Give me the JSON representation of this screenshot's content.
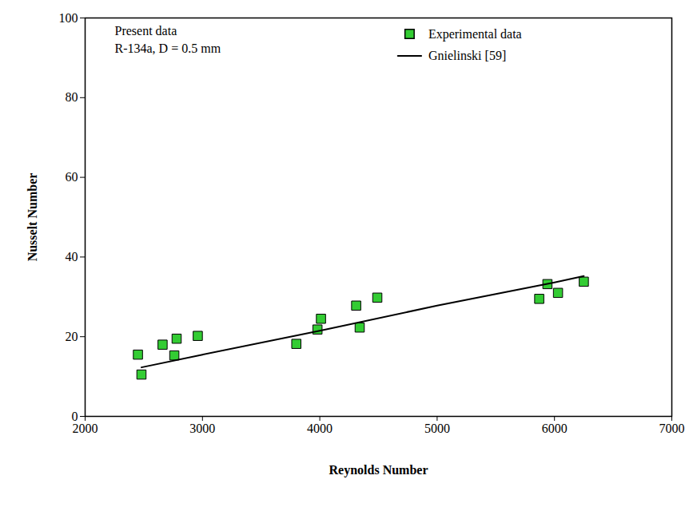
{
  "chart_data": {
    "type": "scatter",
    "x_label": "Reynolds Number",
    "y_label": "Nusselt Number",
    "annotations": [
      "Present data",
      "R-134a, D = 0.5 mm"
    ],
    "xlim": [
      2000,
      7000
    ],
    "xticks": [
      2000,
      3000,
      4000,
      5000,
      6000,
      7000
    ],
    "ylim": [
      0,
      100
    ],
    "yticks": [
      0,
      20,
      40,
      60,
      80,
      100
    ],
    "grid": false,
    "legend": "top-right",
    "series": [
      {
        "name": "Experimental data",
        "type": "scatter",
        "marker": "square",
        "color": "#33cc33",
        "x": [
          2450,
          2480,
          2660,
          2760,
          2780,
          2960,
          3800,
          3980,
          4010,
          4310,
          4340,
          4490,
          5870,
          5940,
          6030,
          6250
        ],
        "values": [
          15.5,
          10.5,
          18,
          15.3,
          19.5,
          20.2,
          18.2,
          21.8,
          24.5,
          27.8,
          22.3,
          29.8,
          29.5,
          33.2,
          31,
          33.8
        ]
      },
      {
        "name": "Gnielinski [59]",
        "type": "line",
        "line_style": "solid",
        "color": "#000000",
        "x": [
          2480,
          3000,
          4000,
          5000,
          6000,
          6250
        ],
        "values": [
          12.3,
          15.5,
          21.5,
          27.8,
          33.6,
          35.2
        ]
      }
    ]
  }
}
